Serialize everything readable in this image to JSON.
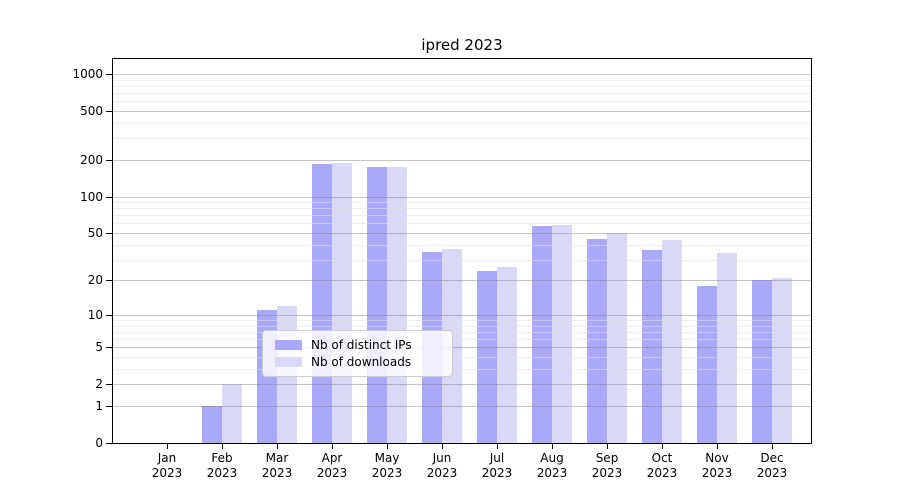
{
  "chart_data": {
    "type": "bar",
    "title": "ipred 2023",
    "scale": "log1p",
    "ylim": [
      0,
      1324
    ],
    "xlabel": "",
    "ylabel": "",
    "categories": [
      "Jan 2023",
      "Feb 2023",
      "Mar 2023",
      "Apr 2023",
      "May 2023",
      "Jun 2023",
      "Jul 2023",
      "Aug 2023",
      "Sep 2023",
      "Oct 2023",
      "Nov 2023",
      "Dec 2023"
    ],
    "series": [
      {
        "name": "Nb of distinct IPs",
        "key": "distinct-ips",
        "color": "#a9a8fb",
        "values": [
          0,
          1,
          11,
          185,
          175,
          35,
          24,
          57,
          45,
          36,
          18,
          20
        ]
      },
      {
        "name": "Nb of downloads",
        "key": "downloads",
        "color": "#d9d8f7",
        "values": [
          0,
          2,
          12,
          190,
          175,
          37,
          26,
          58,
          50,
          44,
          34,
          21
        ]
      }
    ],
    "yticks": [
      0,
      1,
      2,
      5,
      10,
      20,
      50,
      100,
      200,
      500,
      1000
    ],
    "grid": {
      "major": [
        1,
        2,
        5,
        10,
        20,
        50,
        100,
        200,
        500,
        1000
      ],
      "minor": [
        3,
        4,
        6,
        7,
        8,
        9,
        30,
        40,
        60,
        70,
        80,
        90,
        300,
        400,
        600,
        700,
        800,
        900
      ]
    },
    "legend_position": "lower-center",
    "colors": {
      "background": "#ffffff",
      "major_grid": "#c6c6c6",
      "minor_grid": "#ebebeb",
      "axis": "#000000"
    }
  }
}
